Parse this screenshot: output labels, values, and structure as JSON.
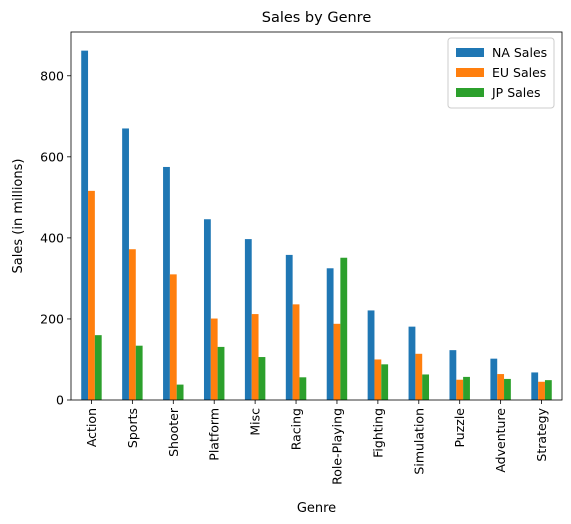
{
  "chart_data": {
    "type": "bar",
    "title": "Sales by Genre",
    "xlabel": "Genre",
    "ylabel": "Sales (in millions)",
    "ylim": [
      0,
      908
    ],
    "yticks": [
      0,
      200,
      400,
      600,
      800
    ],
    "categories": [
      "Action",
      "Sports",
      "Shooter",
      "Platform",
      "Misc",
      "Racing",
      "Role-Playing",
      "Fighting",
      "Simulation",
      "Puzzle",
      "Adventure",
      "Strategy"
    ],
    "series": [
      {
        "name": "NA Sales",
        "color": "#1f77b4",
        "values": [
          862,
          670,
          575,
          446,
          397,
          358,
          325,
          221,
          181,
          123,
          102,
          68
        ]
      },
      {
        "name": "EU Sales",
        "color": "#ff7f0e",
        "values": [
          516,
          372,
          310,
          201,
          212,
          236,
          188,
          100,
          114,
          50,
          64,
          45
        ]
      },
      {
        "name": "JP Sales",
        "color": "#2ca02c",
        "values": [
          160,
          134,
          38,
          131,
          106,
          56,
          351,
          88,
          63,
          57,
          52,
          49
        ]
      }
    ],
    "legend": "top-right",
    "grid": false
  }
}
